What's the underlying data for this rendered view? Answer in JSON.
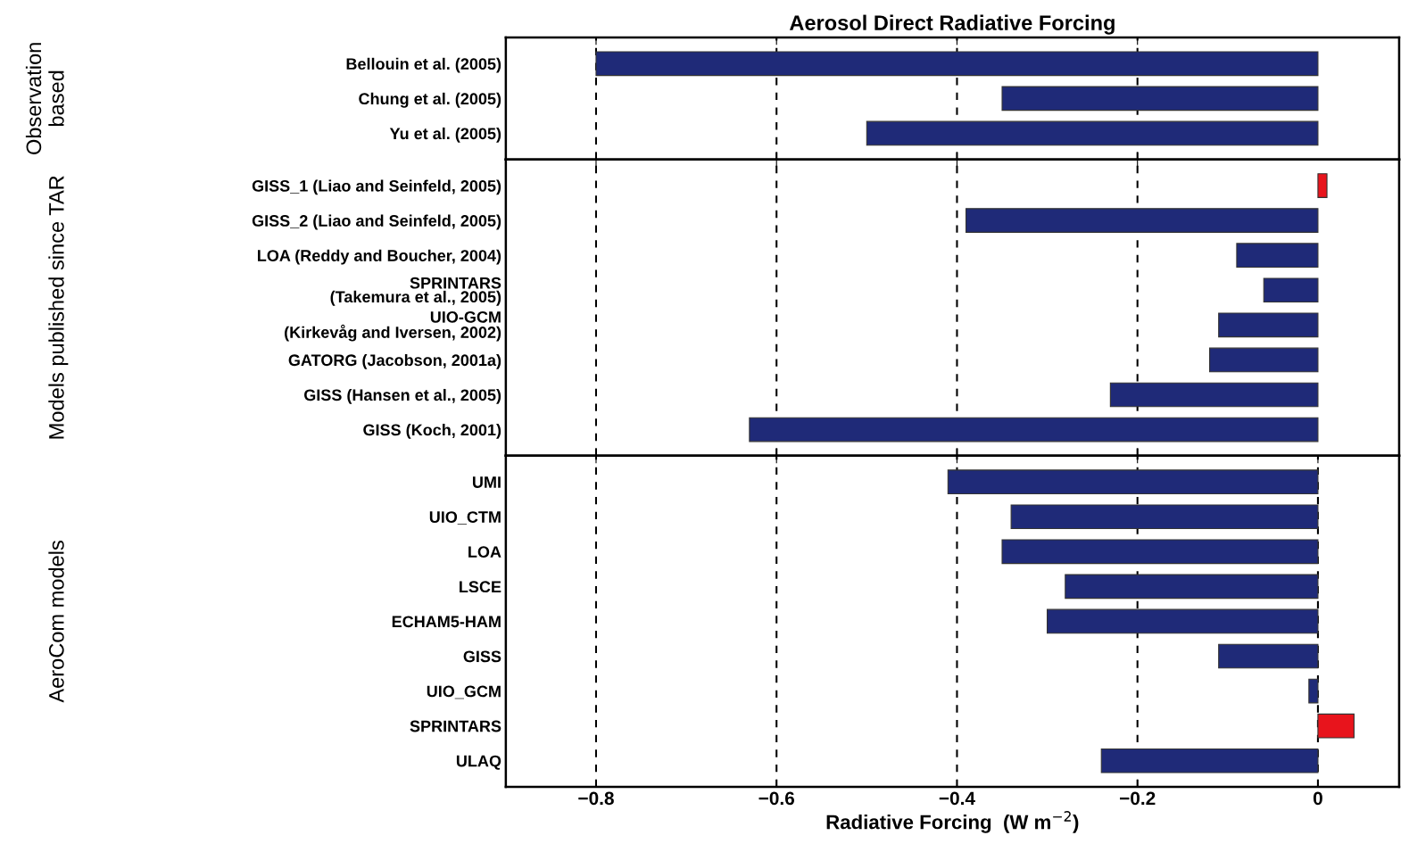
{
  "chart_data": [
    {
      "type": "bar",
      "orientation": "horizontal",
      "title": "Aerosol Direct Radiative Forcing",
      "ylabel": "Observation\nbased",
      "tick_labels": "y",
      "grid": "x",
      "xlim": [
        -0.9,
        0.09
      ],
      "xticks": [
        {
          "value": -0.8,
          "label": null
        },
        {
          "value": -0.6,
          "label": null
        },
        {
          "value": -0.4,
          "label": null
        },
        {
          "value": -0.2,
          "label": null
        }
      ],
      "categories": [
        "Bellouin et al. (2005)",
        "Chung et al. (2005)",
        "Yu et al. (2005)"
      ],
      "values": [
        -0.8,
        -0.35,
        -0.5
      ],
      "colors": [
        "#1f2a78",
        "#1f2a78",
        "#1f2a78"
      ]
    },
    {
      "type": "bar",
      "orientation": "horizontal",
      "ylabel": "Models published since TAR",
      "tick_labels": "y",
      "grid": "x",
      "xlim": [
        -0.9,
        0.09
      ],
      "xticks": [
        {
          "value": -0.8,
          "label": null
        },
        {
          "value": -0.6,
          "label": null
        },
        {
          "value": -0.4,
          "label": null
        },
        {
          "value": -0.2,
          "label": null
        }
      ],
      "categories": [
        "GISS_1 (Liao and Seinfeld, 2005)",
        "GISS_2 (Liao and Seinfeld, 2005)",
        "LOA (Reddy and Boucher, 2004)",
        "SPRINTARS\n(Takemura et al., 2005)",
        "UIO-GCM\n(Kirkevåg and Iversen, 2002)",
        "GATORG (Jacobson, 2001a)",
        "GISS (Hansen et al., 2005)",
        "GISS (Koch, 2001)"
      ],
      "values": [
        0.01,
        -0.39,
        -0.09,
        -0.06,
        -0.11,
        -0.12,
        -0.23,
        -0.63
      ],
      "colors": [
        "#e8141c",
        "#1f2a78",
        "#1f2a78",
        "#1f2a78",
        "#1f2a78",
        "#1f2a78",
        "#1f2a78",
        "#1f2a78"
      ]
    },
    {
      "type": "bar",
      "orientation": "horizontal",
      "ylabel": "AeroCom models",
      "xlabel": "Radiative Forcing  (W m$^{−2}$)",
      "grid": "x",
      "xlim": [
        -0.9,
        0.09
      ],
      "xticks": [
        {
          "value": -0.8,
          "label": "−0.8"
        },
        {
          "value": -0.6,
          "label": "−0.6"
        },
        {
          "value": -0.4,
          "label": "−0.4"
        },
        {
          "value": -0.2,
          "label": "−0.2"
        },
        0
      ],
      "categories": [
        "UMI",
        "UIO_CTM",
        "LOA",
        "LSCE",
        "ECHAM5-HAM",
        "GISS",
        "UIO_GCM",
        "SPRINTARS",
        "ULAQ"
      ],
      "values": [
        -0.41,
        -0.34,
        -0.35,
        -0.28,
        -0.3,
        -0.11,
        -0.01,
        0.04,
        -0.24
      ],
      "colors": [
        "#1f2a78",
        "#1f2a78",
        "#1f2a78",
        "#1f2a78",
        "#1f2a78",
        "#1f2a78",
        "#1f2a78",
        "#e8141c",
        "#1f2a78"
      ]
    }
  ]
}
